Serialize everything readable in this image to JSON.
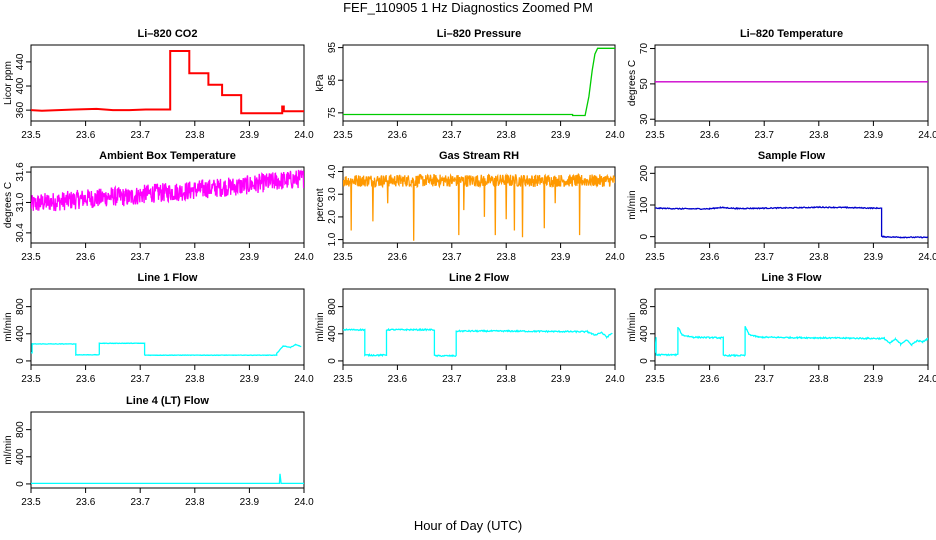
{
  "figure": {
    "title": "FEF_110905  1 Hz Diagnostics Zoomed PM",
    "xlabel": "Hour of Day (UTC)"
  },
  "chart_data": [
    {
      "id": "li820-co2",
      "type": "line",
      "title": "Li–820 CO2",
      "ylabel": "Licor ppm",
      "color": "#ff0000",
      "xlim": [
        23.5,
        24.0
      ],
      "ylim": [
        342,
        468
      ],
      "xticks": [
        "23.5",
        "23.6",
        "23.7",
        "23.8",
        "23.9",
        "24.0"
      ],
      "yticks": [
        {
          "v": 360,
          "label": "360"
        },
        {
          "v": 400,
          "label": "400"
        },
        {
          "v": 440,
          "label": "440"
        }
      ],
      "series": [
        {
          "name": "",
          "x": [
            23.5,
            23.52,
            23.55,
            23.58,
            23.62,
            23.65,
            23.68,
            23.71,
            23.74,
            23.755,
            23.755,
            23.79,
            23.79,
            23.825,
            23.825,
            23.85,
            23.85,
            23.885,
            23.885,
            23.96,
            23.96,
            23.963,
            23.963,
            24.0
          ],
          "y": [
            360,
            359,
            360,
            361,
            362,
            360,
            360,
            361,
            361,
            361,
            458,
            458,
            421,
            421,
            402,
            402,
            385,
            385,
            355,
            355,
            366,
            366,
            358,
            358
          ]
        }
      ]
    },
    {
      "id": "li820-pressure",
      "type": "line",
      "title": "Li–820 Pressure",
      "ylabel": "kPa",
      "color": "#00cc00",
      "xlim": [
        23.5,
        24.0
      ],
      "ylim": [
        72.5,
        95.8
      ],
      "xticks": [
        "23.5",
        "23.6",
        "23.7",
        "23.8",
        "23.9",
        "24.0"
      ],
      "yticks": [
        {
          "v": 75,
          "label": "75"
        },
        {
          "v": 85,
          "label": "85"
        },
        {
          "v": 95,
          "label": "95"
        }
      ],
      "series": [
        {
          "name": "",
          "x": [
            23.5,
            23.7,
            23.9,
            23.922,
            23.922,
            23.945,
            23.952,
            23.958,
            23.963,
            23.968,
            24.0
          ],
          "y": [
            74.5,
            74.5,
            74.5,
            74.5,
            74.2,
            74.2,
            80,
            88,
            93,
            94.8,
            94.8
          ]
        }
      ]
    },
    {
      "id": "li820-temperature",
      "type": "line",
      "title": "Li–820 Temperature",
      "ylabel": "degrees C",
      "color": "#cc00cc",
      "xlim": [
        23.5,
        24.0
      ],
      "ylim": [
        29,
        72
      ],
      "xticks": [
        "23.5",
        "23.6",
        "23.7",
        "23.8",
        "23.9",
        "24.0"
      ],
      "yticks": [
        {
          "v": 30,
          "label": "30"
        },
        {
          "v": 50,
          "label": "50"
        },
        {
          "v": 70,
          "label": "70"
        }
      ],
      "series": [
        {
          "name": "",
          "x": [
            23.5,
            24.0
          ],
          "y": [
            51.2,
            51.2
          ]
        }
      ]
    },
    {
      "id": "ambient-box-temperature",
      "type": "line",
      "title": "Ambient Box Temperature",
      "ylabel": "degrees C",
      "color": "#ff00ff",
      "xlim": [
        23.5,
        24.0
      ],
      "ylim": [
        30.2,
        31.7
      ],
      "xticks": [
        "23.5",
        "23.6",
        "23.7",
        "23.8",
        "23.9",
        "24.0"
      ],
      "yticks": [
        {
          "v": 30.4,
          "label": "30.4"
        },
        {
          "v": 31.0,
          "label": "31.0"
        },
        {
          "v": 31.6,
          "label": "31.6"
        }
      ],
      "series": [
        {
          "name": "",
          "x": [
            23.5,
            23.52,
            23.55,
            23.58,
            23.6,
            23.62,
            23.65,
            23.68,
            23.7,
            23.72,
            23.75,
            23.78,
            23.8,
            23.82,
            23.85,
            23.88,
            23.9,
            23.92,
            23.95,
            23.98,
            24.0
          ],
          "y": [
            30.95,
            31.0,
            31.02,
            31.05,
            31.08,
            31.08,
            31.12,
            31.1,
            31.15,
            31.18,
            31.2,
            31.22,
            31.25,
            31.27,
            31.3,
            31.32,
            31.35,
            31.38,
            31.42,
            31.45,
            31.48
          ]
        }
      ]
    },
    {
      "id": "gas-stream-rh",
      "type": "line",
      "title": "Gas Stream RH",
      "ylabel": "percent",
      "color": "#ff9900",
      "xlim": [
        23.5,
        24.0
      ],
      "ylim": [
        0.85,
        4.2
      ],
      "xticks": [
        "23.5",
        "23.6",
        "23.7",
        "23.8",
        "23.9",
        "24.0"
      ],
      "yticks": [
        {
          "v": 1.0,
          "label": "1.0"
        },
        {
          "v": 2.0,
          "label": "2.0"
        },
        {
          "v": 3.0,
          "label": "3.0"
        },
        {
          "v": 4.0,
          "label": "4.0"
        }
      ],
      "series": [
        {
          "name": "",
          "x": [
            23.5,
            24.0
          ],
          "y": [
            3.6,
            3.6
          ]
        }
      ]
    },
    {
      "id": "sample-flow",
      "type": "line",
      "title": "Sample Flow",
      "ylabel": "ml/min",
      "color": "#0000cc",
      "xlim": [
        23.5,
        24.0
      ],
      "ylim": [
        -20,
        220
      ],
      "xticks": [
        "23.5",
        "23.6",
        "23.7",
        "23.8",
        "23.9",
        "24.0"
      ],
      "yticks": [
        {
          "v": 0,
          "label": "0"
        },
        {
          "v": 100,
          "label": "100"
        },
        {
          "v": 200,
          "label": "200"
        }
      ],
      "series": [
        {
          "name": "",
          "x": [
            23.5,
            23.55,
            23.6,
            23.62,
            23.65,
            23.7,
            23.75,
            23.8,
            23.85,
            23.9,
            23.915,
            23.915,
            23.95,
            24.0
          ],
          "y": [
            90,
            88,
            88,
            92,
            89,
            90,
            91,
            93,
            92,
            90,
            90,
            0,
            -2,
            -2
          ]
        }
      ]
    },
    {
      "id": "line1-flow",
      "type": "line",
      "title": "Line 1 Flow",
      "ylabel": "ml/min",
      "color": "#00ffff",
      "xlim": [
        23.5,
        24.0
      ],
      "ylim": [
        -60,
        1060
      ],
      "xticks": [
        "23.5",
        "23.6",
        "23.7",
        "23.8",
        "23.9",
        "24.0"
      ],
      "yticks": [
        {
          "v": 0,
          "label": "0"
        },
        {
          "v": 400,
          "label": "400"
        },
        {
          "v": 800,
          "label": "800"
        }
      ],
      "series": [
        {
          "name": "",
          "x": [
            23.5,
            23.502,
            23.502,
            23.582,
            23.582,
            23.625,
            23.625,
            23.708,
            23.708,
            23.95,
            23.95,
            23.962,
            23.975,
            23.985,
            23.995
          ],
          "y": [
            120,
            120,
            250,
            250,
            90,
            90,
            260,
            260,
            85,
            85,
            110,
            220,
            200,
            240,
            210
          ]
        }
      ]
    },
    {
      "id": "line2-flow",
      "type": "line",
      "title": "Line 2 Flow",
      "ylabel": "ml/min",
      "color": "#00ffff",
      "xlim": [
        23.5,
        24.0
      ],
      "ylim": [
        -60,
        1060
      ],
      "xticks": [
        "23.5",
        "23.6",
        "23.7",
        "23.8",
        "23.9",
        "24.0"
      ],
      "yticks": [
        {
          "v": 0,
          "label": "0"
        },
        {
          "v": 400,
          "label": "400"
        },
        {
          "v": 800,
          "label": "800"
        }
      ],
      "series": [
        {
          "name": "",
          "x": [
            23.5,
            23.54,
            23.54,
            23.58,
            23.58,
            23.668,
            23.668,
            23.708,
            23.708,
            23.8,
            23.95,
            23.962,
            23.975,
            23.985,
            23.995
          ],
          "y": [
            460,
            460,
            85,
            85,
            460,
            460,
            75,
            75,
            440,
            440,
            430,
            380,
            420,
            350,
            410
          ]
        }
      ]
    },
    {
      "id": "line3-flow",
      "type": "line",
      "title": "Line 3 Flow",
      "ylabel": "ml/min",
      "color": "#00ffff",
      "xlim": [
        23.5,
        24.0
      ],
      "ylim": [
        -60,
        1060
      ],
      "xticks": [
        "23.5",
        "23.6",
        "23.7",
        "23.8",
        "23.9",
        "24.0"
      ],
      "yticks": [
        {
          "v": 0,
          "label": "0"
        },
        {
          "v": 400,
          "label": "400"
        },
        {
          "v": 800,
          "label": "800"
        }
      ],
      "series": [
        {
          "name": "",
          "x": [
            23.5,
            23.502,
            23.502,
            23.542,
            23.542,
            23.55,
            23.57,
            23.62,
            23.625,
            23.625,
            23.665,
            23.665,
            23.672,
            23.69,
            23.8,
            23.92,
            23.93,
            23.94,
            23.95,
            23.96,
            23.97,
            23.98,
            23.99,
            24.0
          ],
          "y": [
            120,
            350,
            90,
            90,
            500,
            380,
            350,
            340,
            340,
            80,
            80,
            510,
            390,
            350,
            340,
            330,
            260,
            320,
            250,
            310,
            240,
            300,
            280,
            330
          ]
        }
      ]
    },
    {
      "id": "line4-lt-flow",
      "type": "line",
      "title": "Line 4 (LT) Flow",
      "ylabel": "ml/min",
      "color": "#00ffff",
      "xlim": [
        23.5,
        24.0
      ],
      "ylim": [
        -60,
        1060
      ],
      "xticks": [
        "23.5",
        "23.6",
        "23.7",
        "23.8",
        "23.9",
        "24.0"
      ],
      "yticks": [
        {
          "v": 0,
          "label": "0"
        },
        {
          "v": 400,
          "label": "400"
        },
        {
          "v": 800,
          "label": "800"
        }
      ],
      "series": [
        {
          "name": "",
          "x": [
            23.5,
            23.955,
            23.956,
            23.958,
            23.96,
            24.0
          ],
          "y": [
            8,
            8,
            150,
            8,
            8,
            8
          ]
        }
      ]
    }
  ]
}
